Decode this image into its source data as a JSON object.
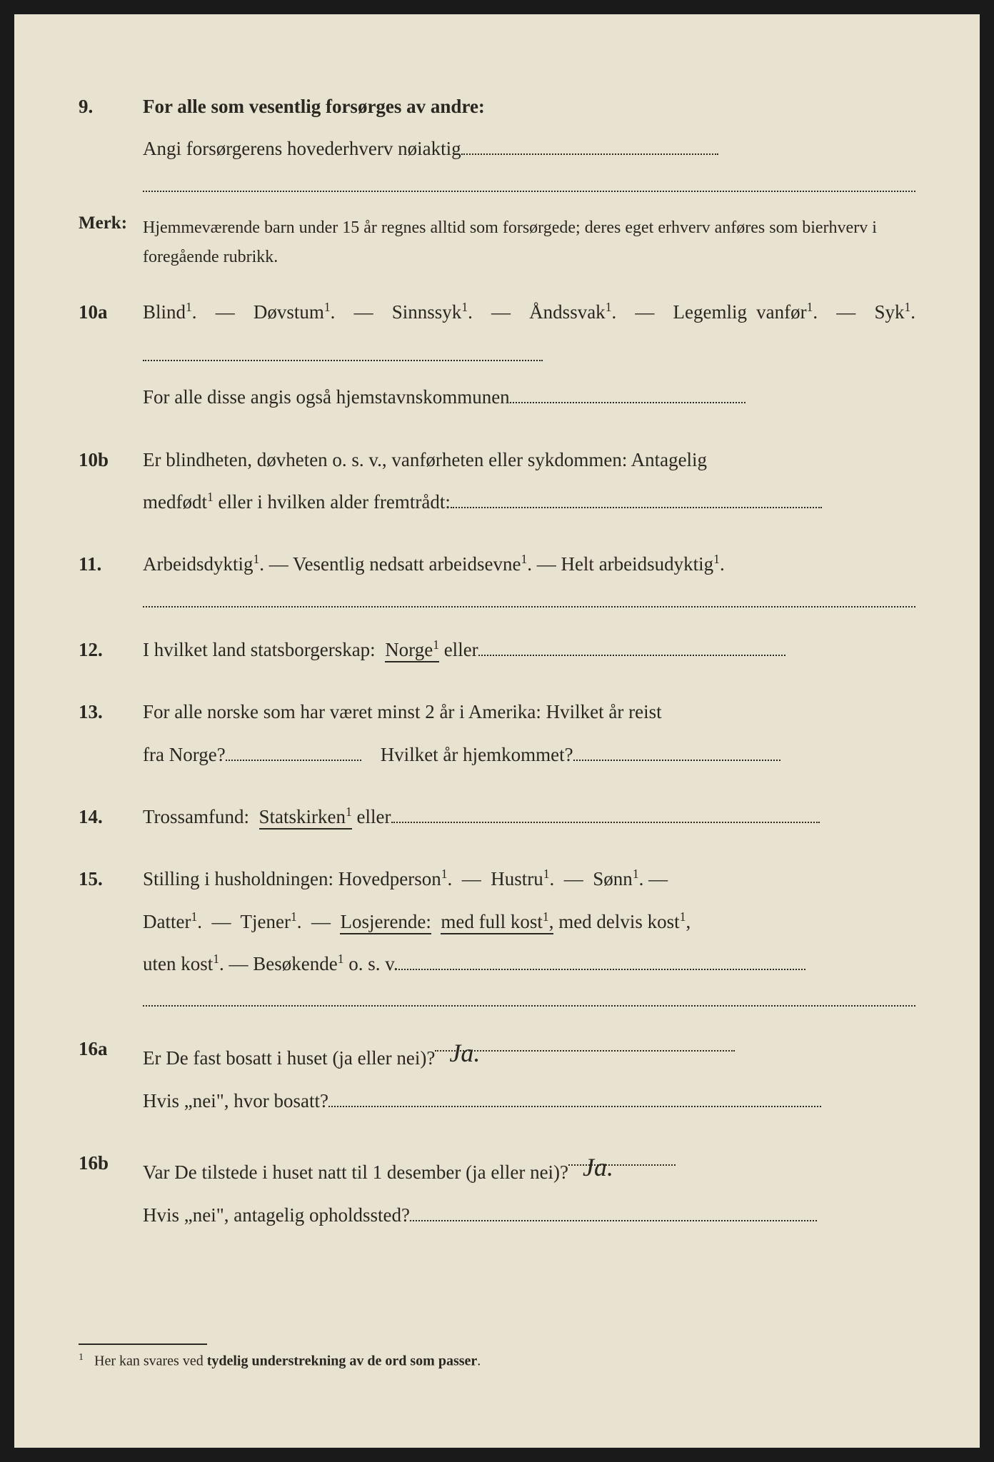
{
  "q9": {
    "num": "9.",
    "title": "For alle som vesentlig forsørges av andre:",
    "line": "Angi forsørgerens hovederhverv nøiaktig"
  },
  "merk": {
    "label": "Merk:",
    "text": "Hjemmeværende barn under 15 år regnes alltid som forsørgede; deres eget erhverv anføres som bierhverv i foregående rubrikk."
  },
  "q10a": {
    "num": "10a",
    "opts": [
      "Blind¹.",
      "Døvstum¹.",
      "Sinnssyk¹.",
      "Åndssvak¹.",
      "Legemlig vanfør¹.",
      "Syk¹."
    ],
    "sep": " — ",
    "extra": "For alle disse angis også hjemstavnskommunen"
  },
  "q10b": {
    "num": "10b",
    "text1": "Er blindheten, døvheten o. s. v., vanførheten eller sykdommen: Antagelig",
    "text2": "medfødt¹ eller i hvilken alder fremtrådt:"
  },
  "q11": {
    "num": "11.",
    "opts": [
      "Arbeidsdyktig¹.",
      "Vesentlig nedsatt arbeidsevne¹.",
      "Helt arbeidsudyktig¹."
    ],
    "sep": " — "
  },
  "q12": {
    "num": "12.",
    "text": "I hvilket land statsborgerskap:",
    "underlined": "Norge¹",
    "after": "eller"
  },
  "q13": {
    "num": "13.",
    "text1": "For alle norske som har været minst 2 år i Amerika: Hvilket år reist",
    "text2": "fra Norge?",
    "text3": "Hvilket år hjemkommet?"
  },
  "q14": {
    "num": "14.",
    "text": "Trossamfund:",
    "underlined": "Statskirken¹",
    "after": "eller"
  },
  "q15": {
    "num": "15.",
    "text": "Stilling i husholdningen:",
    "opts1": [
      "Hovedperson¹.",
      "Hustru¹.",
      "Sønn¹."
    ],
    "opts2_pre": [
      "Datter¹.",
      "Tjener¹."
    ],
    "underlined1": "Losjerende:",
    "underlined2": "med full kost¹,",
    "opts2_post": "med delvis kost¹,",
    "line3": "uten kost¹.  —  Besøkende¹ o. s. v.",
    "sep": " — "
  },
  "q16a": {
    "num": "16a",
    "text1": "Er De fast bosatt i huset (ja eller nei)?",
    "answer": "Ja.",
    "text2": "Hvis „nei\", hvor bosatt?"
  },
  "q16b": {
    "num": "16b",
    "text1": "Var De tilstede i huset natt til 1 desember (ja eller nei)?",
    "answer": "Ja.",
    "text2": "Hvis „nei\", antagelig opholdssted?"
  },
  "footnote": {
    "num": "1",
    "text": "Her kan svares ved tydelig understrekning av de ord som passer."
  },
  "colors": {
    "paper": "#e8e2d0",
    "ink": "#2a2620",
    "background": "#1a1a1a"
  }
}
